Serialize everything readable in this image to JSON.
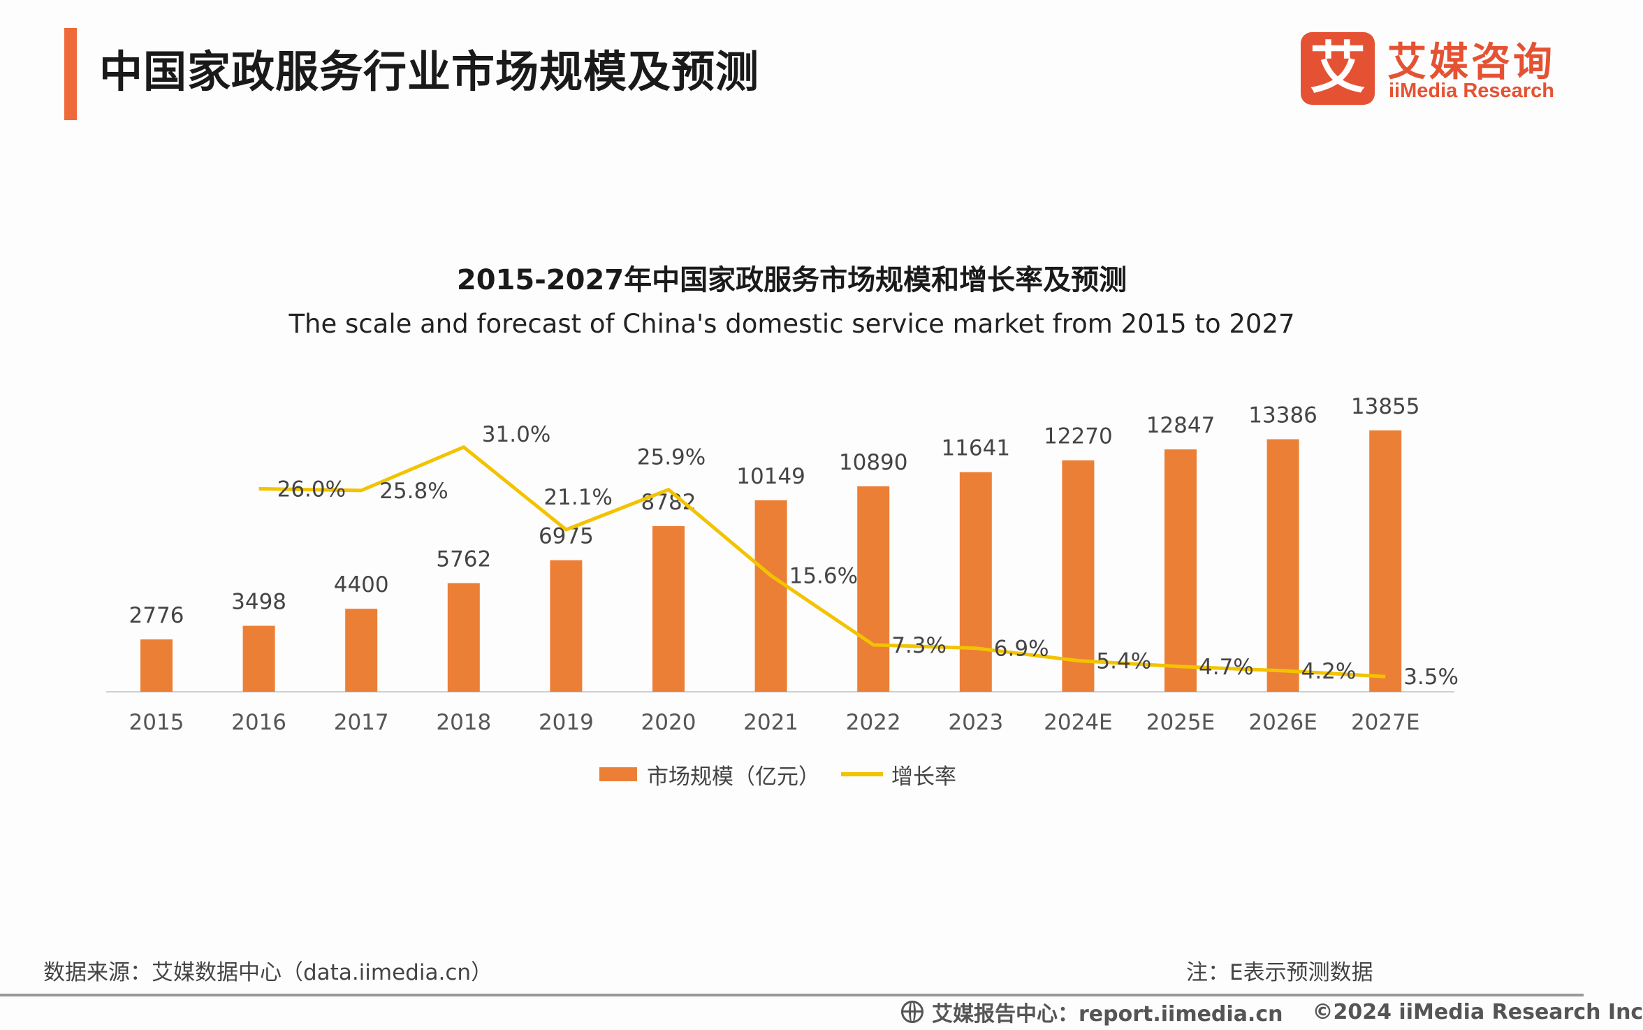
{
  "header": {
    "title": "中国家政服务行业市场规模及预测",
    "logo_mark": "艾",
    "logo_cn": "艾媒咨询",
    "logo_en": "iiMedia Research"
  },
  "chart_data": {
    "type": "bar",
    "title": "2015-2027年中国家政服务市场规模和增长率及预测",
    "subtitle": "The scale and forecast of China's domestic service market from 2015 to 2027",
    "categories": [
      "2015",
      "2016",
      "2017",
      "2018",
      "2019",
      "2020",
      "2021",
      "2022",
      "2023",
      "2024E",
      "2025E",
      "2026E",
      "2027E"
    ],
    "series": [
      {
        "name": "市场规模（亿元）",
        "type": "bar",
        "color": "#ec7f36",
        "values": [
          2776,
          3498,
          4400,
          5762,
          6975,
          8782,
          10149,
          10890,
          11641,
          12270,
          12847,
          13386,
          13855
        ],
        "labels": [
          "2776",
          "3498",
          "4400",
          "5762",
          "6975",
          "8782",
          "10149",
          "10890",
          "11641",
          "12270",
          "12847",
          "13386",
          "13855"
        ]
      },
      {
        "name": "增长率",
        "type": "line",
        "color": "#f2c300",
        "values": [
          null,
          26.0,
          25.8,
          31.0,
          21.1,
          25.9,
          15.6,
          7.3,
          6.9,
          5.4,
          4.7,
          4.2,
          3.5
        ],
        "labels": [
          "",
          "26.0%",
          "25.8%",
          "31.0%",
          "21.1%",
          "25.9%",
          "15.6%",
          "7.3%",
          "6.9%",
          "5.4%",
          "4.7%",
          "4.2%",
          "3.5%"
        ]
      }
    ],
    "ylim": [
      0,
      14000
    ],
    "y2lim": [
      0,
      35
    ],
    "grid": false,
    "legend": "bottom-center"
  },
  "footer": {
    "source": "数据来源：艾媒数据中心（data.iimedia.cn）",
    "note": "注：E表示预测数据",
    "report_center": "艾媒报告中心：report.iimedia.cn",
    "copyright": "©2024  iiMedia Research  Inc"
  }
}
